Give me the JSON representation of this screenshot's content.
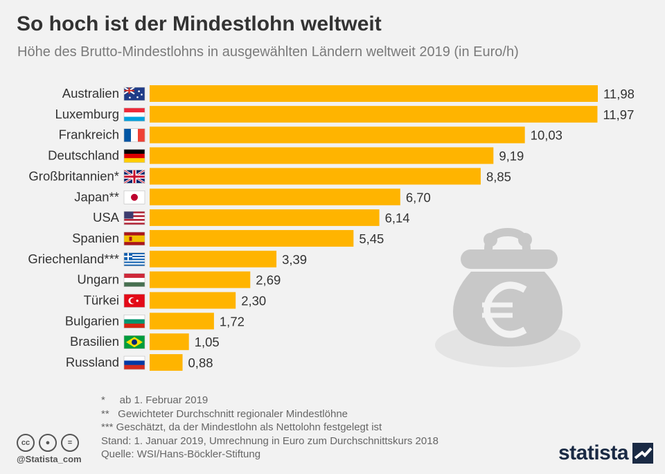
{
  "title": "So hoch ist der Mindestlohn weltweit",
  "subtitle": "Höhe des Brutto-Mindestlohns in ausgewählten Ländern weltweit 2019 (in Euro/h)",
  "colors": {
    "bar": "#ffb400",
    "text": "#333333",
    "muted": "#777777",
    "purse": "#c8c8c8",
    "brand": "#1a2a44"
  },
  "chart_data": {
    "type": "bar",
    "orientation": "horizontal",
    "categories": [
      "Australien",
      "Luxemburg",
      "Frankreich",
      "Deutschland",
      "Großbritannien*",
      "Japan**",
      "USA",
      "Spanien",
      "Griechenland***",
      "Ungarn",
      "Türkei",
      "Bulgarien",
      "Brasilien",
      "Russland"
    ],
    "values": [
      11.98,
      11.97,
      10.03,
      9.19,
      8.85,
      6.7,
      6.14,
      5.45,
      3.39,
      2.69,
      2.3,
      1.72,
      1.05,
      0.88
    ],
    "value_labels": [
      "11,98",
      "11,97",
      "10,03",
      "9,19",
      "8,85",
      "6,70",
      "6,14",
      "5,45",
      "3,39",
      "2,69",
      "2,30",
      "1,72",
      "1,05",
      "0,88"
    ],
    "title": "So hoch ist der Mindestlohn weltweit",
    "unit": "Euro/h",
    "xlim": [
      0,
      11.98
    ],
    "grid": false,
    "flags": [
      "flag-australia-icon",
      "flag-luxembourg-icon",
      "flag-france-icon",
      "flag-germany-icon",
      "flag-uk-icon",
      "flag-japan-icon",
      "flag-usa-icon",
      "flag-spain-icon",
      "flag-greece-icon",
      "flag-hungary-icon",
      "flag-turkey-icon",
      "flag-bulgaria-icon",
      "flag-brazil-icon",
      "flag-russia-icon"
    ]
  },
  "footnotes": [
    "*     ab 1. Februar 2019",
    "**   Gewichteter Durchschnitt regionaler Mindestlöhne",
    "*** Geschätzt, da der Mindestlohn als Nettolohn festgelegt ist",
    "Stand: 1. Januar 2019, Umrechnung in Euro zum Durchschnittskurs 2018",
    "Quelle: WSI/Hans-Böckler-Stiftung"
  ],
  "handle": "@Statista_com",
  "brand": "statista",
  "license_icons": [
    "cc-icon",
    "by-icon",
    "nd-icon"
  ]
}
